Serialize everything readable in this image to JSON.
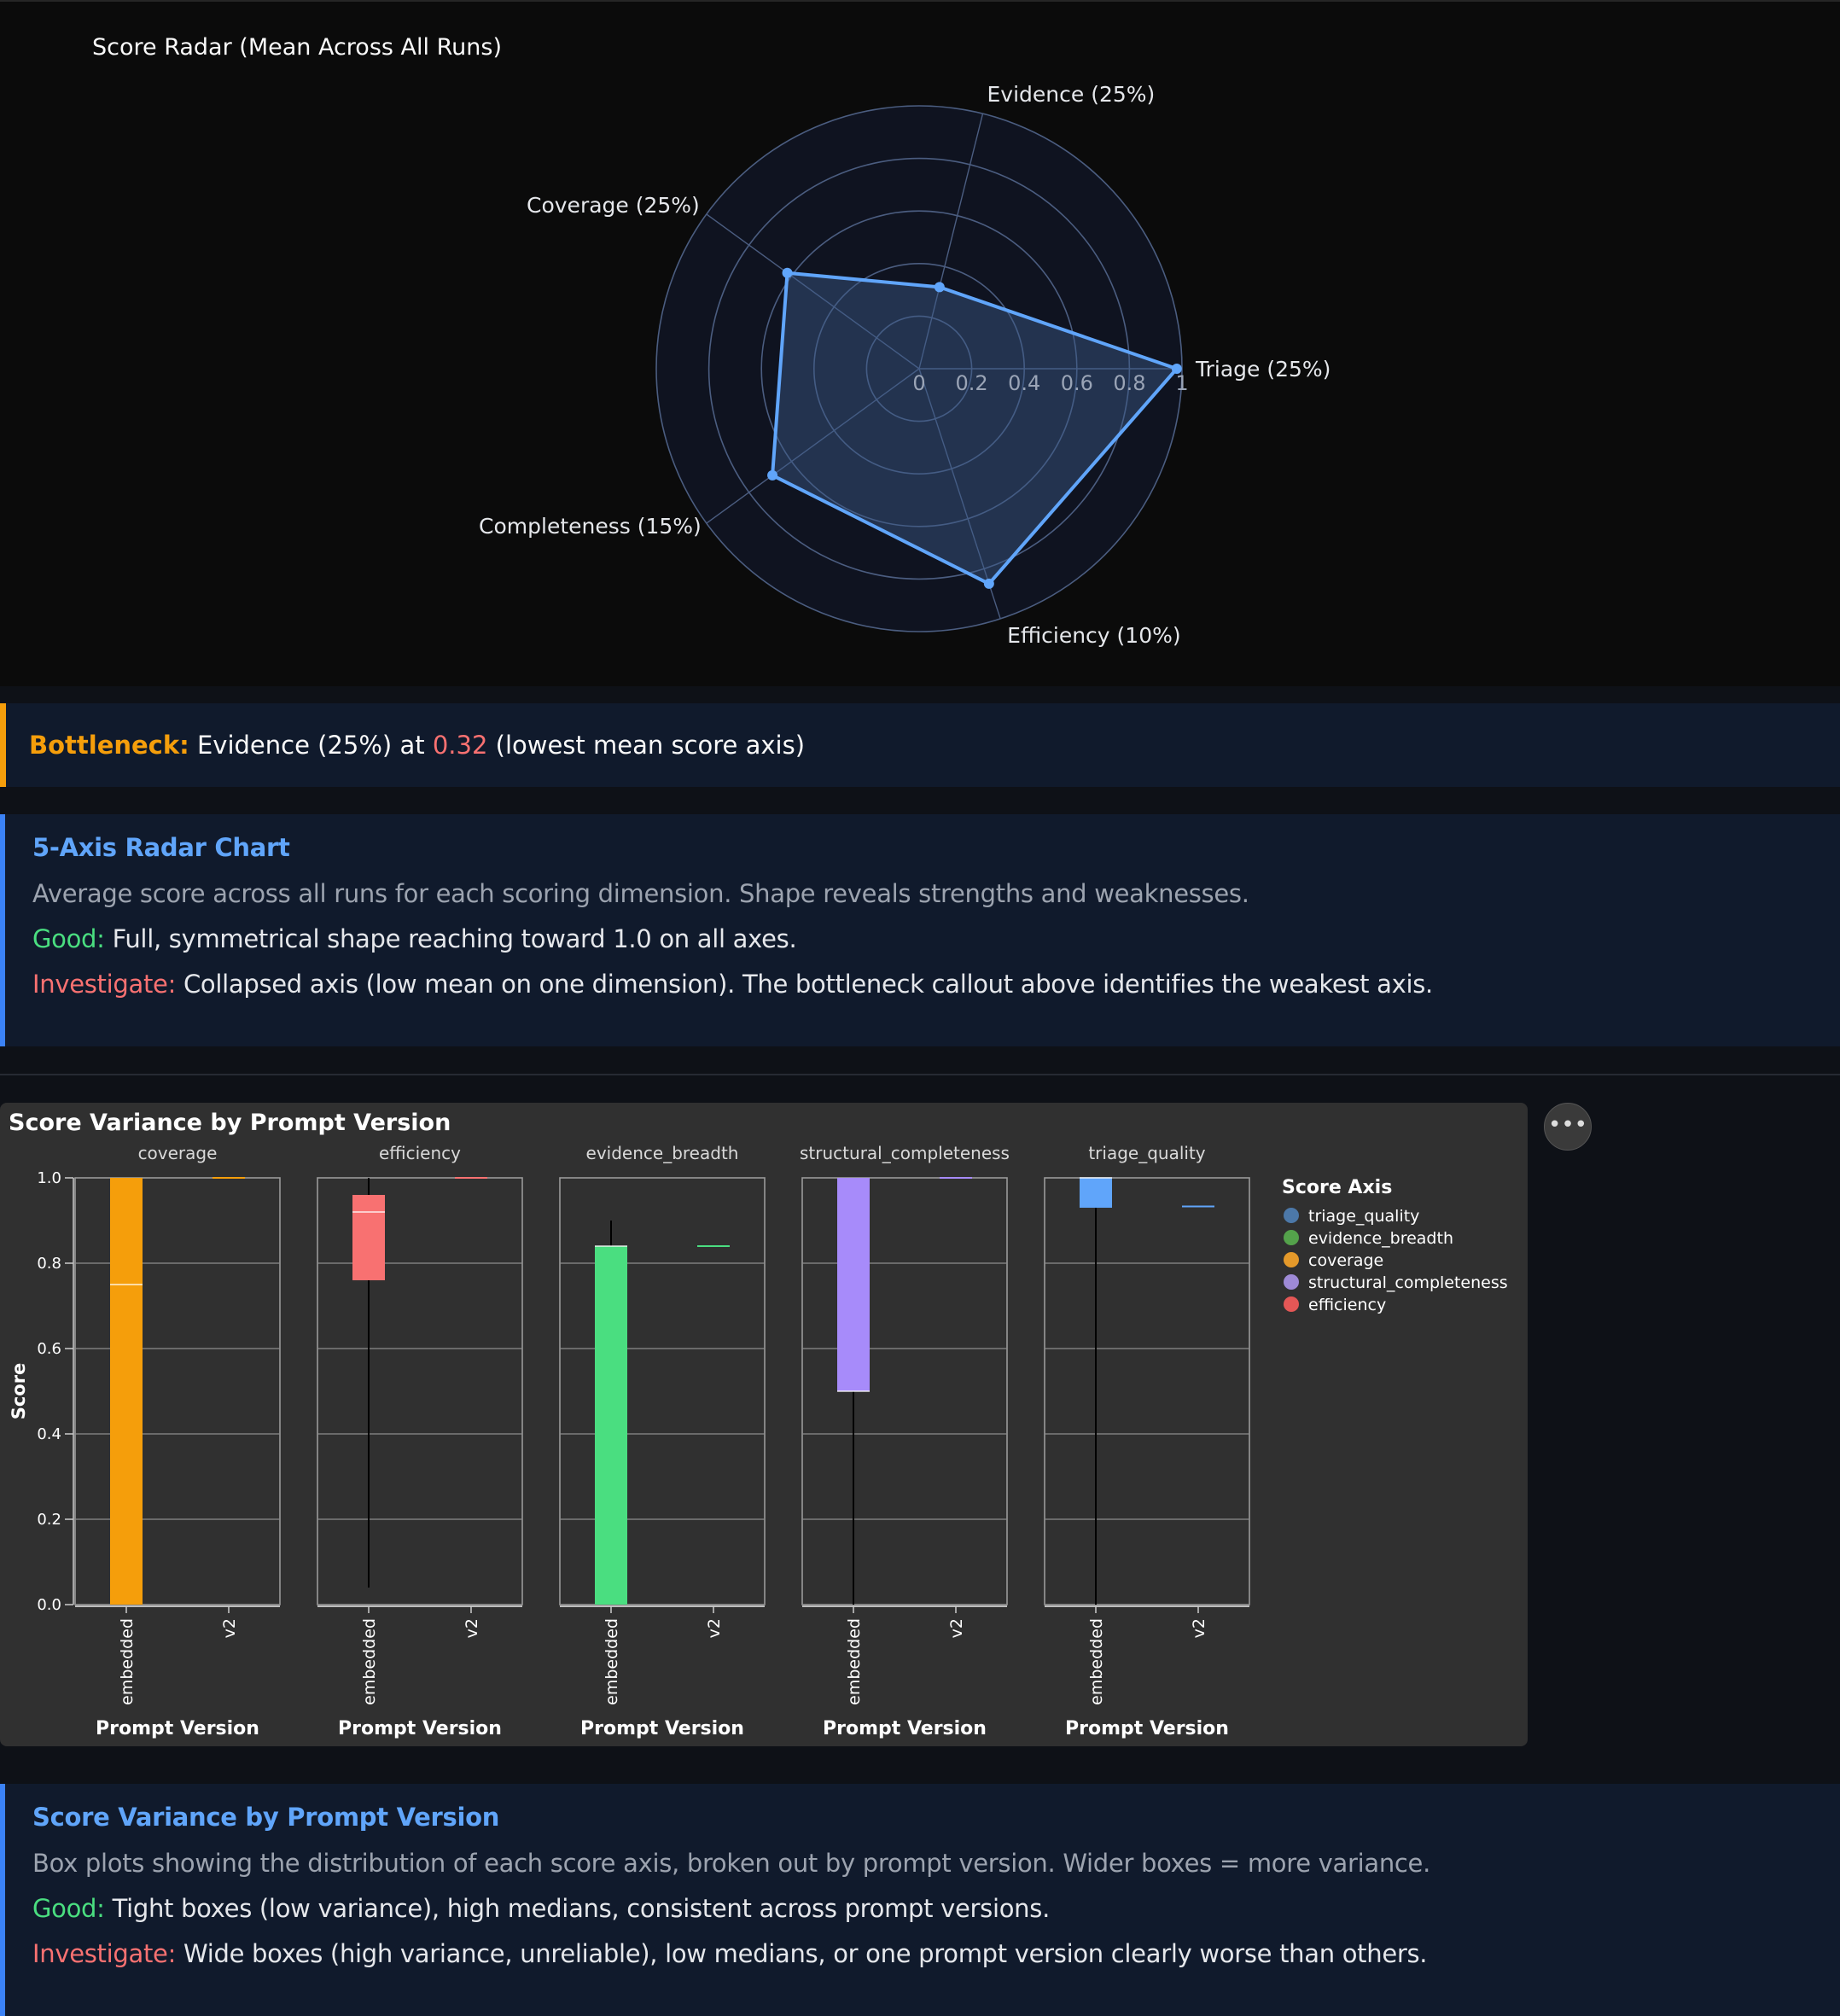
{
  "radar": {
    "chart_data": {
      "type": "radar",
      "title": "Score Radar (Mean Across All Runs)",
      "axes": [
        "Triage (25%)",
        "Evidence (25%)",
        "Coverage (25%)",
        "Completeness (15%)",
        "Efficiency (10%)"
      ],
      "values": [
        0.98,
        0.32,
        0.62,
        0.69,
        0.86
      ],
      "radial_range": [
        0,
        1
      ],
      "radial_ticks": [
        "0",
        "0.2",
        "0.4",
        "0.6",
        "0.8",
        "1"
      ],
      "radial_tick_values": [
        0,
        0.2,
        0.4,
        0.6,
        0.8,
        1.0
      ],
      "axis_angles_deg": [
        0,
        76,
        144,
        216,
        288
      ],
      "colors": {
        "line": "#60a5fa",
        "fill": "#3b5a8a",
        "grid": "#4b5d80",
        "background": "#0f1320"
      }
    }
  },
  "bottleneck": {
    "label": "Bottleneck:",
    "axis": "Evidence (25%)",
    "at": "at",
    "value": "0.32",
    "note": "(lowest mean score axis)"
  },
  "info1": {
    "title": "5-Axis Radar Chart",
    "desc": "Average score across all runs for each scoring dimension. Shape reveals strengths and weaknesses.",
    "good_label": "Good:",
    "good_text": "Full, symmetrical shape reaching toward 1.0 on all axes.",
    "inv_label": "Investigate:",
    "inv_text": "Collapsed axis (low mean on one dimension). The bottleneck callout above identifies the weakest axis."
  },
  "boxplot": {
    "more_icon": "more-horizontal-icon",
    "more_glyph": "•••",
    "chart_data": {
      "type": "boxplot",
      "title": "Score Variance by Prompt Version",
      "ylabel": "Score",
      "xlabel": "Prompt Version",
      "ylim": [
        0,
        1
      ],
      "yticks": [
        "0.0",
        "0.2",
        "0.4",
        "0.6",
        "0.8",
        "1.0"
      ],
      "ytick_values": [
        0,
        0.2,
        0.4,
        0.6,
        0.8,
        1.0
      ],
      "categories": [
        "embedded",
        "v2"
      ],
      "legend_title": "Score Axis",
      "legend": [
        {
          "name": "triage_quality",
          "color": "#4c78a8"
        },
        {
          "name": "evidence_breadth",
          "color": "#54a24b"
        },
        {
          "name": "coverage",
          "color": "#e4992a"
        },
        {
          "name": "structural_completeness",
          "color": "#9e8ad6"
        },
        {
          "name": "efficiency",
          "color": "#e45756"
        }
      ],
      "facets": [
        {
          "name": "coverage",
          "color": "#f59e0b",
          "boxes": [
            {
              "category": "embedded",
              "min": 0.0,
              "q1": 0.0,
              "median": 0.75,
              "q3": 1.0,
              "max": 1.0
            },
            {
              "category": "v2",
              "min": 1.0,
              "q1": 1.0,
              "median": 1.0,
              "q3": 1.0,
              "max": 1.0
            }
          ]
        },
        {
          "name": "efficiency",
          "color": "#f87171",
          "boxes": [
            {
              "category": "embedded",
              "min": 0.04,
              "q1": 0.76,
              "median": 0.92,
              "q3": 0.96,
              "max": 1.0
            },
            {
              "category": "v2",
              "min": 1.0,
              "q1": 1.0,
              "median": 1.0,
              "q3": 1.0,
              "max": 1.0
            }
          ]
        },
        {
          "name": "evidence_breadth",
          "color": "#4ade80",
          "boxes": [
            {
              "category": "embedded",
              "min": 0.0,
              "q1": 0.0,
              "median": 0.84,
              "q3": 0.84,
              "max": 0.9
            },
            {
              "category": "v2",
              "min": 0.84,
              "q1": 0.84,
              "median": 0.84,
              "q3": 0.84,
              "max": 0.84
            }
          ]
        },
        {
          "name": "structural_completeness",
          "color": "#a78bfa",
          "boxes": [
            {
              "category": "embedded",
              "min": 0.0,
              "q1": 0.5,
              "median": 0.5,
              "q3": 1.0,
              "max": 1.0
            },
            {
              "category": "v2",
              "min": 1.0,
              "q1": 1.0,
              "median": 1.0,
              "q3": 1.0,
              "max": 1.0
            }
          ]
        },
        {
          "name": "triage_quality",
          "color": "#60a5fa",
          "boxes": [
            {
              "category": "embedded",
              "min": 0.0,
              "q1": 0.93,
              "median": 1.0,
              "q3": 1.0,
              "max": 1.0
            },
            {
              "category": "v2",
              "min": 0.933,
              "q1": 0.933,
              "median": 0.933,
              "q3": 0.933,
              "max": 0.933
            }
          ]
        }
      ]
    }
  },
  "info2": {
    "title": "Score Variance by Prompt Version",
    "desc": "Box plots showing the distribution of each score axis, broken out by prompt version. Wider boxes = more variance.",
    "good_label": "Good:",
    "good_text": "Tight boxes (low variance), high medians, consistent across prompt versions.",
    "inv_label": "Investigate:",
    "inv_text": "Wide boxes (high variance, unreliable), low medians, or one prompt version clearly worse than others."
  }
}
